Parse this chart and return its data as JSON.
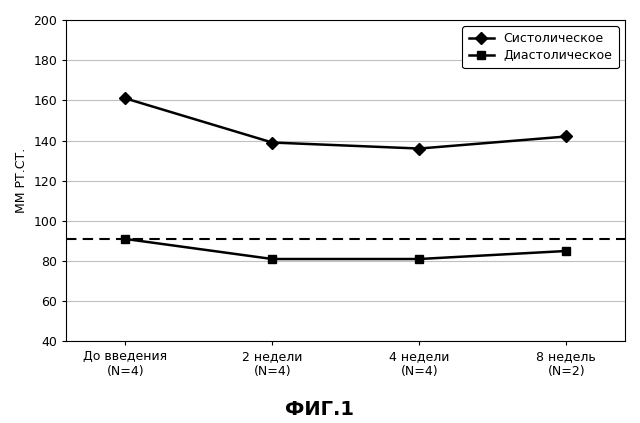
{
  "x_positions": [
    0,
    1,
    2,
    3
  ],
  "x_labels": [
    "До введения\n(N=4)",
    "2 недели\n(N=4)",
    "4 недели\n(N=4)",
    "8 недель\n(N=2)"
  ],
  "systolic": [
    161,
    139,
    136,
    142
  ],
  "diastolic": [
    91,
    81,
    81,
    85
  ],
  "systolic_label": "Систолическое",
  "diastolic_label": "Диастолическое",
  "diastolic_ref_line": 91,
  "ylabel": "ММ РТ.СТ.",
  "title": "ФИГ.1",
  "ylim": [
    40,
    200
  ],
  "yticks": [
    40,
    60,
    80,
    100,
    120,
    140,
    160,
    180,
    200
  ],
  "line_color": "#000000",
  "grid_color": "#c0c0c0",
  "bg_color": "#ffffff",
  "fig_bg": "#ffffff",
  "legend_fontsize": 9,
  "axis_fontsize": 9,
  "ylabel_fontsize": 9,
  "title_fontsize": 14
}
